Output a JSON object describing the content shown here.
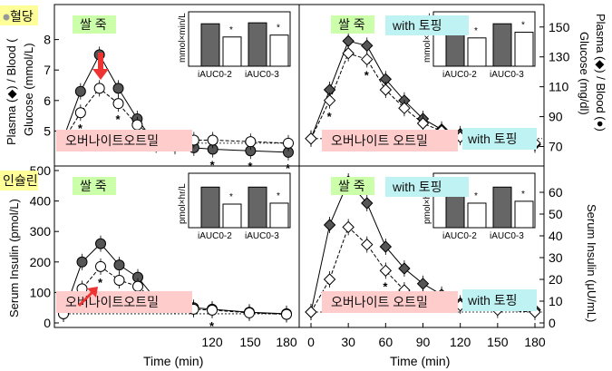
{
  "chart_data": [
    {
      "id": "glucose-porridge",
      "type": "line",
      "title": "혈당",
      "meal_label": "쌀 죽",
      "xlabel": "",
      "x": [
        0,
        15,
        30,
        45,
        60,
        75,
        90,
        105,
        120,
        150,
        180
      ],
      "ylim": [
        4,
        9
      ],
      "yticks": [
        5,
        6,
        7,
        8
      ],
      "series": [
        {
          "name": "Plasma",
          "marker": "filled-circle",
          "values": [
            4.6,
            6.3,
            7.5,
            6.4,
            5.4,
            4.55,
            4.5,
            4.45,
            4.4,
            4.35,
            4.3
          ]
        },
        {
          "name": "Blood",
          "marker": "open-circle",
          "values": [
            4.6,
            5.6,
            6.4,
            5.9,
            5.2,
            4.75,
            4.7,
            4.7,
            4.7,
            4.65,
            4.6
          ]
        }
      ],
      "stars": [
        15,
        45,
        120,
        150,
        180
      ],
      "inset": {
        "ylabel": "mmol×min/L",
        "categories": [
          "iAUC0-2",
          "iAUC0-3"
        ],
        "filled": [
          0.9,
          0.92
        ],
        "open": [
          0.62,
          0.66
        ],
        "stars": true
      }
    },
    {
      "id": "glucose-topping",
      "type": "line",
      "title": "",
      "meal_label": "쌀 죽",
      "topping_label": "with 토핑",
      "xlabel": "",
      "x": [
        0,
        15,
        30,
        45,
        60,
        75,
        90,
        105,
        120,
        150,
        180
      ],
      "ylim": [
        4,
        9
      ],
      "yticks_right": [
        70,
        90,
        110,
        130,
        150
      ],
      "series": [
        {
          "name": "Plasma",
          "marker": "filled-diamond",
          "values": [
            4.75,
            6.35,
            7.95,
            7.8,
            6.7,
            6.0,
            5.4,
            5.05,
            4.9,
            4.8,
            4.55
          ]
        },
        {
          "name": "Blood",
          "marker": "open-diamond",
          "values": [
            4.75,
            6.0,
            7.55,
            7.35,
            6.35,
            5.75,
            5.25,
            5.0,
            4.8,
            4.7,
            4.6
          ]
        }
      ],
      "stars": [
        15,
        45,
        90
      ],
      "inset": {
        "ylabel": "mmol×min/L",
        "categories": [
          "iAUC0-2",
          "iAUC0-3"
        ],
        "filled": [
          0.76,
          0.9
        ],
        "open": [
          0.6,
          0.72
        ],
        "stars": true
      }
    },
    {
      "id": "insulin-porridge",
      "type": "line",
      "title": "인슐린",
      "meal_label": "쌀 죽",
      "xlabel": "Time (min)",
      "x": [
        0,
        15,
        30,
        45,
        60,
        75,
        90,
        105,
        120,
        150,
        180
      ],
      "ylim": [
        0,
        500
      ],
      "yticks": [
        0,
        100,
        200,
        300,
        400,
        500
      ],
      "series": [
        {
          "name": "Insulin filled",
          "marker": "filled-circle",
          "values": [
            30,
            200,
            260,
            190,
            150,
            75,
            60,
            50,
            45,
            35,
            30
          ]
        },
        {
          "name": "Insulin open",
          "marker": "open-circle",
          "values": [
            30,
            112,
            185,
            140,
            120,
            68,
            55,
            45,
            42,
            33,
            28
          ]
        }
      ],
      "stars": [
        30,
        45,
        120
      ],
      "inset": {
        "ylabel": "pmol×hr/L",
        "categories": [
          "iAUC0-2",
          "iAUC0-3"
        ],
        "filled": [
          0.86,
          0.86
        ],
        "open": [
          0.5,
          0.52
        ],
        "stars": true
      }
    },
    {
      "id": "insulin-topping",
      "type": "line",
      "title": "",
      "meal_label": "쌀 죽",
      "topping_label": "with 토핑",
      "xlabel": "Time (min)",
      "x": [
        0,
        15,
        30,
        45,
        60,
        75,
        90,
        105,
        120,
        150,
        180
      ],
      "xticks": [
        0,
        30,
        60,
        90,
        120,
        150,
        180
      ],
      "ylim_right": [
        0,
        70
      ],
      "yticks_right": [
        0,
        10,
        20,
        30,
        40,
        50,
        60
      ],
      "series": [
        {
          "name": "Insulin filled",
          "marker": "filled-diamond",
          "values": [
            5,
            45,
            65,
            55,
            35,
            25,
            18,
            13,
            9,
            7,
            6
          ]
        },
        {
          "name": "Insulin open",
          "marker": "open-diamond",
          "values": [
            5,
            20,
            44,
            36,
            24,
            15,
            12,
            10,
            8,
            6,
            5
          ]
        }
      ],
      "stars": [
        15,
        60,
        90
      ],
      "inset": {
        "ylabel": "pmol×hr/L",
        "categories": [
          "iAUC0-2",
          "iAUC0-3"
        ],
        "filled": [
          0.72,
          0.86
        ],
        "open": [
          0.52,
          0.56
        ],
        "stars": true
      }
    }
  ],
  "labels": {
    "left_top_axis": "Plasma (◆) / Blood (",
    "left_top_axis2": "Glucose (mmol/L)",
    "left_bottom_axis": "Serum Insulin (pmol/L)",
    "right_top_axis": "Plasma (◆) / Blood (●)",
    "right_top_axis2": "Glucose (mg/dl)",
    "right_bottom_axis": "Serum Insulin (μU/mL)",
    "oatmeal": "오버나이트오트밀",
    "oatmeal_spaced": "오버나이트 오트밀",
    "topping_tag": "with 토핑",
    "x_left_ticks": [
      "120",
      "150",
      "180"
    ],
    "x_right_ticks": [
      "0",
      "30",
      "60",
      "90",
      "120",
      "150",
      "180"
    ],
    "glucose_title": "혈당",
    "insulin_title": "인슐린"
  },
  "colors": {
    "filled": "#555555",
    "open": "#ffffff",
    "green": "#ccffaa",
    "pink": "#ffcccc",
    "cyan": "#bff2f2",
    "yellow": "#ffff99",
    "red": "#ee3333",
    "bar_dark": "#666666"
  }
}
